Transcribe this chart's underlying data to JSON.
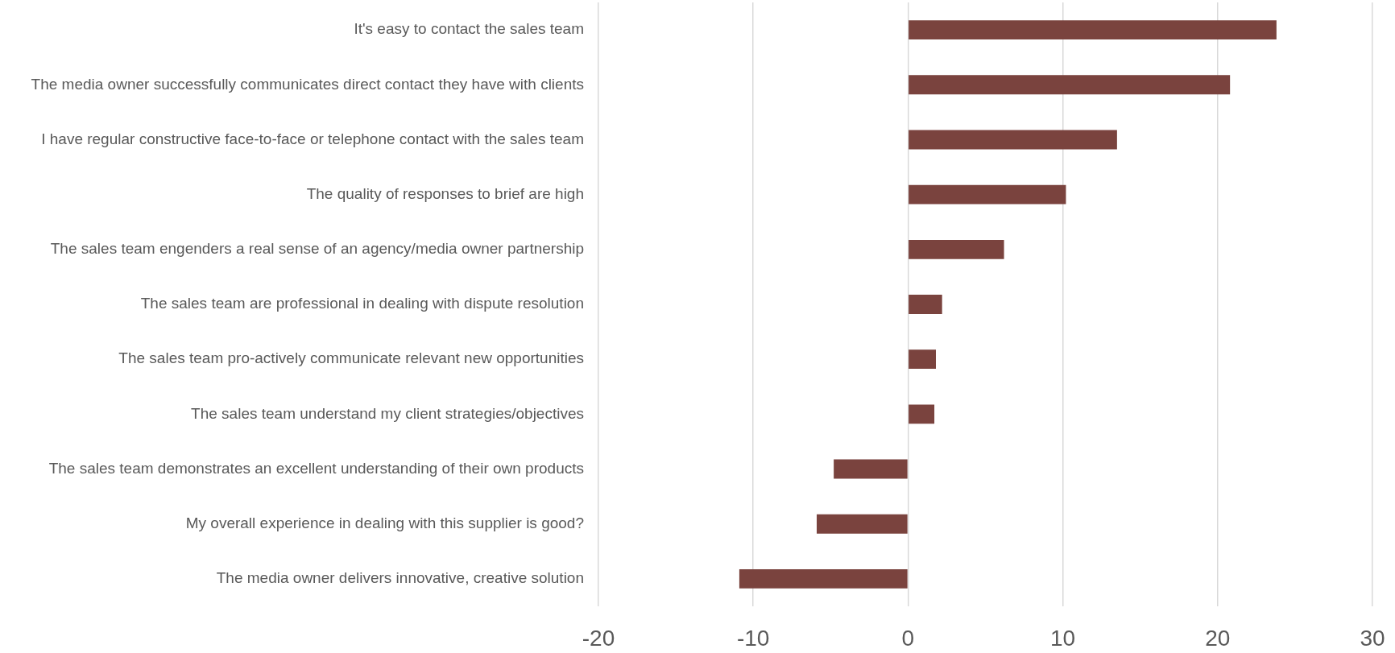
{
  "chart_data": {
    "type": "bar",
    "orientation": "horizontal",
    "categories": [
      "It's easy to contact the sales team",
      "The media owner successfully communicates direct contact they have with clients",
      "I have regular constructive face-to-face or telephone contact with the sales team",
      "The quality of responses to brief are high",
      "The sales team engenders a real sense of an agency/media owner partnership",
      "The sales team are professional in dealing with dispute resolution",
      "The sales team pro-actively communicate relevant new opportunities",
      "The sales team understand my client strategies/objectives",
      "The sales team demonstrates an excellent understanding of their own products",
      "My overall experience in dealing with this supplier is good?",
      "The media owner delivers innovative, creative solution"
    ],
    "values": [
      23.8,
      20.8,
      13.5,
      10.2,
      6.2,
      2.2,
      1.8,
      1.7,
      -4.8,
      -5.9,
      -10.9
    ],
    "color": "#7a433e",
    "xlim": [
      -20,
      30
    ],
    "xticks": [
      -20,
      -10,
      0,
      10,
      20,
      30
    ],
    "grid": "x",
    "legend": false
  }
}
